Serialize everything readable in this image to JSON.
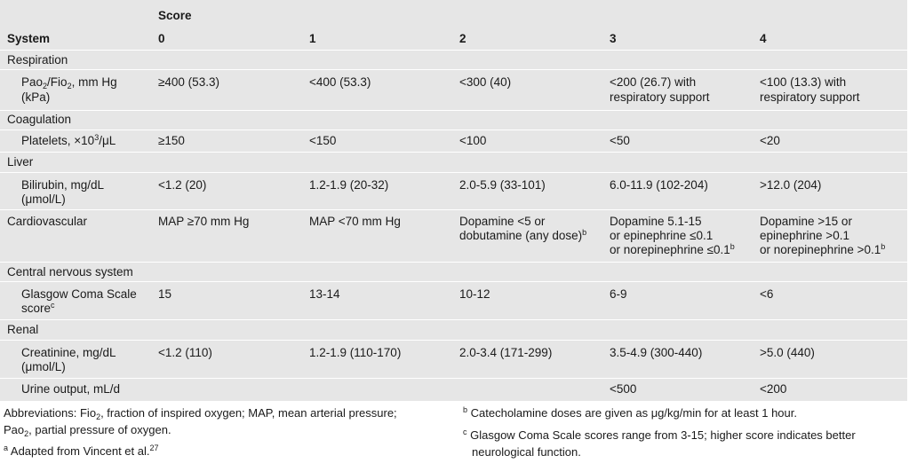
{
  "header": {
    "score_label": "Score",
    "system_label": "System",
    "score_cols": [
      "0",
      "1",
      "2",
      "3",
      "4"
    ]
  },
  "rows": {
    "respiration": {
      "section": "Respiration"
    },
    "pao2": {
      "label_l1_a": "Pao",
      "label_l1_sub1": "2",
      "label_l1_b": "/Fio",
      "label_l1_sub2": "2",
      "label_l1_c": ", mm Hg",
      "label_l2": "(kPa)",
      "c0": "≥400 (53.3)",
      "c1": "<400 (53.3)",
      "c2": "<300 (40)",
      "c3_l1": "<200 (26.7) with",
      "c3_l2": "respiratory support",
      "c4_l1": "<100 (13.3) with",
      "c4_l2": "respiratory support"
    },
    "coagulation": {
      "section": "Coagulation"
    },
    "platelets": {
      "label_a": "Platelets, ×10",
      "label_sup": "3",
      "label_b": "/μL",
      "c0": "≥150",
      "c1": "<150",
      "c2": "<100",
      "c3": "<50",
      "c4": "<20"
    },
    "liver": {
      "section": "Liver"
    },
    "bilirubin": {
      "label_l1": "Bilirubin, mg/dL",
      "label_l2": "(μmol/L)",
      "c0": "<1.2 (20)",
      "c1": "1.2-1.9 (20-32)",
      "c2": "2.0-5.9 (33-101)",
      "c3": "6.0-11.9 (102-204)",
      "c4": ">12.0 (204)"
    },
    "cardio": {
      "label": "Cardiovascular",
      "c0": "MAP ≥70 mm Hg",
      "c1": "MAP <70 mm Hg",
      "c2_l1": "Dopamine <5 or",
      "c2_l2": "dobutamine (any dose)",
      "c2_sup": "b",
      "c3_l1": "Dopamine 5.1-15",
      "c3_l2": "or epinephrine ≤0.1",
      "c3_l3": "or norepinephrine ≤0.1",
      "c3_sup": "b",
      "c4_l1": "Dopamine >15 or",
      "c4_l2": "epinephrine >0.1",
      "c4_l3": "or norepinephrine >0.1",
      "c4_sup": "b"
    },
    "cns": {
      "section": "Central nervous system"
    },
    "gcs": {
      "label_l1": "Glasgow Coma Scale",
      "label_l2": "score",
      "label_sup": "c",
      "c0": "15",
      "c1": "13-14",
      "c2": "10-12",
      "c3": "6-9",
      "c4": "<6"
    },
    "renal": {
      "section": "Renal"
    },
    "creatinine": {
      "label_l1": "Creatinine, mg/dL",
      "label_l2": "(μmol/L)",
      "c0": "<1.2 (110)",
      "c1": "1.2-1.9 (110-170)",
      "c2": "2.0-3.4 (171-299)",
      "c3": "3.5-4.9 (300-440)",
      "c4": ">5.0 (440)"
    },
    "urine": {
      "label": "Urine output, mL/d",
      "c3": "<500",
      "c4": "<200"
    }
  },
  "footnotes": {
    "abbr_l1_a": "Abbreviations: Fio",
    "abbr_l1_sub": "2",
    "abbr_l1_b": ", fraction of inspired oxygen; MAP, mean arterial pressure;",
    "abbr_l2_a": "Pao",
    "abbr_l2_sub": "2",
    "abbr_l2_b": ", partial pressure of oxygen.",
    "a_mark": "a",
    "a_text": " Adapted from Vincent et al.",
    "a_ref": "27",
    "b_mark": "b",
    "b_text": " Catecholamine doses are given as μg/kg/min for at least 1 hour.",
    "c_mark": "c",
    "c_text_l1": " Glasgow Coma Scale scores range from 3-15; higher score indicates better",
    "c_text_l2": "neurological function."
  }
}
